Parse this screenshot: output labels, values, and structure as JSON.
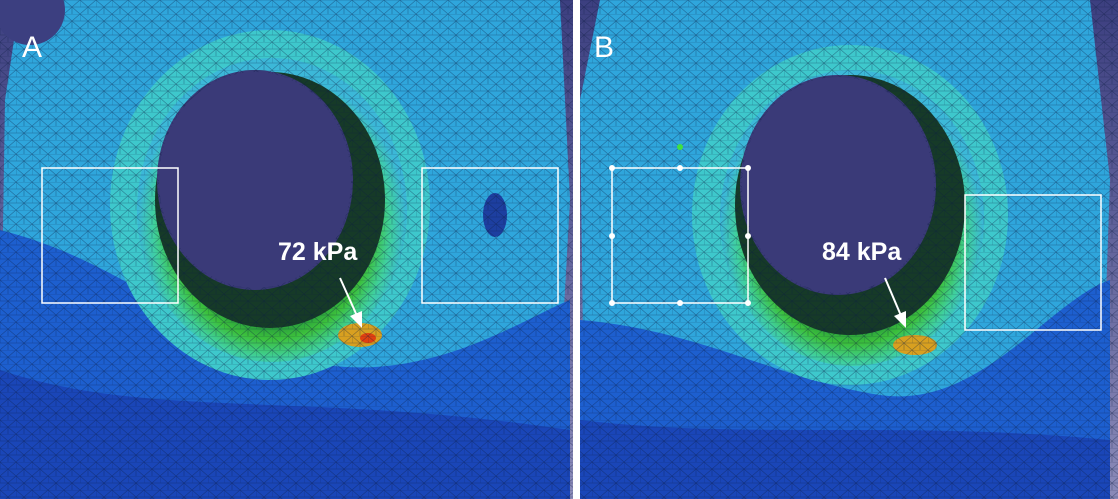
{
  "panels": [
    {
      "label": "A",
      "annotation": "72 kPa"
    },
    {
      "label": "B",
      "annotation": "84 kPa"
    }
  ]
}
